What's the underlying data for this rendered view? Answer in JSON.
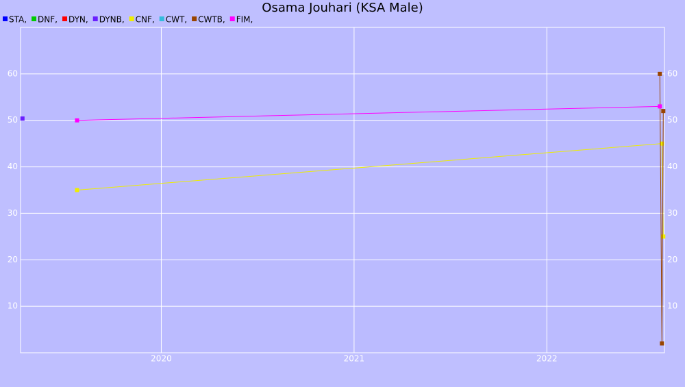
{
  "chart_data": {
    "type": "line",
    "title": "Osama Jouhari (KSA Male)",
    "xlim": [
      2019.27,
      2022.61
    ],
    "xticks": [
      2020,
      2021,
      2022
    ],
    "ylim": [
      0,
      70
    ],
    "yticks": [
      10,
      20,
      30,
      40,
      50,
      60
    ],
    "grid": true,
    "series": [
      {
        "name": "STA,",
        "color": "#0000ff",
        "x": [],
        "values": []
      },
      {
        "name": "DNF,",
        "color": "#00cc00",
        "x": [],
        "values": []
      },
      {
        "name": "DYN,",
        "color": "#ff0000",
        "x": [],
        "values": []
      },
      {
        "name": "DYNB,",
        "color": "#6a1fff",
        "x": [
          2019.28
        ],
        "values": [
          50.4
        ]
      },
      {
        "name": "CNF,",
        "color": "#eeee00",
        "x": [
          2019.563,
          2022.597,
          2022.604
        ],
        "values": [
          35,
          45,
          25
        ]
      },
      {
        "name": "CWT,",
        "color": "#33bbdd",
        "x": [],
        "values": []
      },
      {
        "name": "CWTB,",
        "color": "#994400",
        "x": [
          2022.586,
          2022.597,
          2022.604
        ],
        "values": [
          60,
          2,
          52
        ]
      },
      {
        "name": "FIM,",
        "color": "#ff00ff",
        "x": [
          2019.563,
          2022.586
        ],
        "values": [
          50,
          53
        ]
      }
    ]
  }
}
